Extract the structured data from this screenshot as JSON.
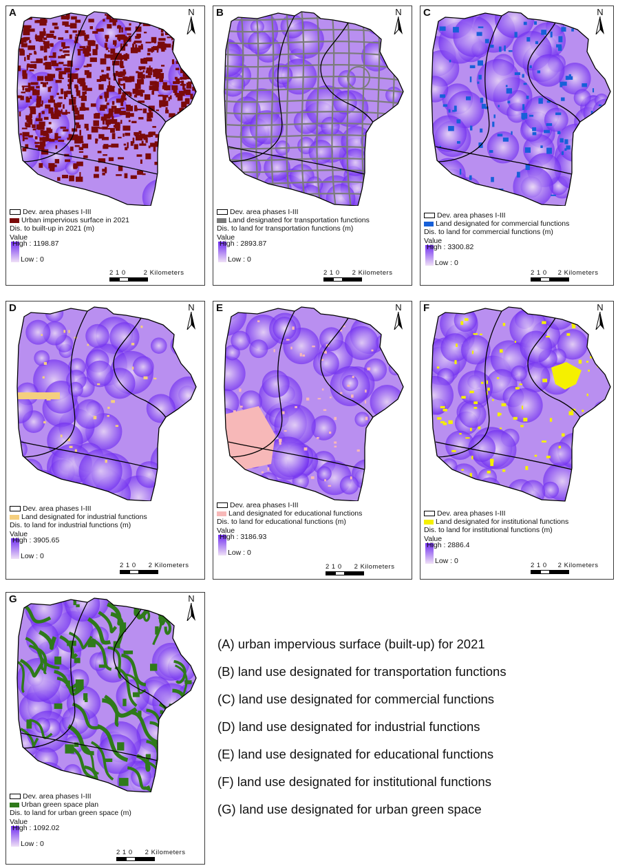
{
  "panels": [
    {
      "label": "A",
      "north": "N",
      "boundary_label": "Dev. area phases I-III",
      "layer_label": "Urban impervious surface in 2021",
      "layer_color": "#7a0a0a",
      "dist_label": "Dis. to built-up in 2021 (m)",
      "value_label": "Value",
      "high": "High : 1198.87",
      "low": "Low : 0",
      "overlay": "impervious",
      "scale_nums": "2 1 0",
      "scale_unit": "2 Kilometers"
    },
    {
      "label": "B",
      "north": "N",
      "boundary_label": "Dev. area phases I-III",
      "layer_label": "Land designated for transportation functions",
      "layer_color": "#7b7b7b",
      "dist_label": "Dis. to land for transportation functions (m)",
      "value_label": "Value",
      "high": "High : 2893.87",
      "low": "Low : 0",
      "overlay": "roads",
      "scale_nums": "2 1 0",
      "scale_unit": "2 Kilometers"
    },
    {
      "label": "C",
      "north": "N",
      "boundary_label": "Dev. area phases I-III",
      "layer_label": "Land designated for commercial functions",
      "layer_color": "#1760d8",
      "dist_label": "Dis. to land for commercial functions (m)",
      "value_label": "Value",
      "high": "High : 3300.82",
      "low": "Low : 0",
      "overlay": "patches",
      "scale_nums": "2 1 0",
      "scale_unit": "2 Kilometers"
    },
    {
      "label": "D",
      "north": "N",
      "boundary_label": "Dev. area phases I-III",
      "layer_label": "Land designated for industrial functions",
      "layer_color": "#f5cf7e",
      "dist_label": "Dis. to land for industrial functions (m)",
      "value_label": "Value",
      "high": "High : 3905.65",
      "low": "Low : 0",
      "overlay": "industrial",
      "scale_nums": "2 1 0",
      "scale_unit": "2 Kilometers"
    },
    {
      "label": "E",
      "north": "N",
      "boundary_label": "Dev. area phases I-III",
      "layer_label": "Land designated for educational functions",
      "layer_color": "#f7b8b8",
      "dist_label": "Dis. to land for educational functions (m)",
      "value_label": "Value",
      "high": "High : 3186.93",
      "low": "Low : 0",
      "overlay": "educational",
      "scale_nums": "2 1 0",
      "scale_unit": "2 Kilometers"
    },
    {
      "label": "F",
      "north": "N",
      "boundary_label": "Dev. area phases I-III",
      "layer_label": "Land designated for institutional functions",
      "layer_color": "#f5f000",
      "dist_label": "Dis. to land for institutional functions (m)",
      "value_label": "Value",
      "high": "High : 2886.4",
      "low": "Low : 0",
      "overlay": "institutional",
      "scale_nums": "2 1 0",
      "scale_unit": "2 Kilometers"
    },
    {
      "label": "G",
      "north": "N",
      "boundary_label": "Dev. area phases I-III",
      "layer_label": "Urban green space plan",
      "layer_color": "#2f7a1a",
      "dist_label": "Dis. to land for urban green space (m)",
      "value_label": "Value",
      "high": "High : 1092.02",
      "low": "Low : 0",
      "overlay": "green",
      "scale_nums": "2 1 0",
      "scale_unit": "2 Kilometers"
    }
  ],
  "colors": {
    "high": "#6f2cf0",
    "low": "#efe0f6",
    "base": "#b98ff0",
    "boundary": "#000000"
  },
  "captions": [
    "(A) urban impervious surface (built-up) for 2021",
    "(B) land use designated for transportation functions",
    "(C) land use designated for commercial functions",
    "(D) land use designated for industrial functions",
    "(E) land use designated for educational functions",
    "(F) land use designated for institutional functions",
    "(G) land use designated for urban green space"
  ]
}
